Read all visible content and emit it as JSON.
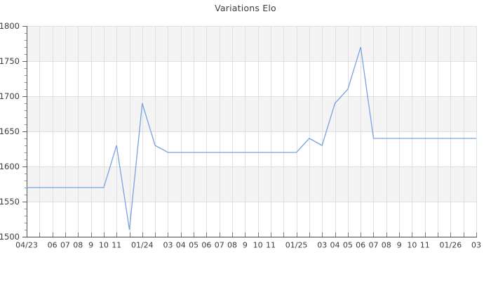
{
  "chart_data": {
    "type": "line",
    "title": "Variations Elo",
    "xlabel": "",
    "ylabel": "",
    "legend": "none",
    "grid": "on",
    "ylim": [
      1500,
      1800
    ],
    "y_major_step": 50,
    "y_minor_step": 10,
    "y_tick_labels": [
      "1800",
      "1750",
      "1700",
      "1650",
      "1600",
      "1550",
      "1500"
    ],
    "x_tick_labels": [
      "04/23",
      "",
      "06",
      "07",
      "08",
      "9",
      "10",
      "11",
      "",
      "01/24",
      "",
      "03",
      "04",
      "05",
      "06",
      "07",
      "08",
      "9",
      "10",
      "11",
      "",
      "01/25",
      "",
      "03",
      "04",
      "05",
      "06",
      "07",
      "08",
      "9",
      "10",
      "11",
      "",
      "01/26",
      "",
      "03"
    ],
    "x_months": [
      "04/2023",
      "05/2023",
      "06/2023",
      "07/2023",
      "08/2023",
      "09/2023",
      "10/2023",
      "11/2023",
      "12/2023",
      "01/2024",
      "02/2024",
      "03/2024",
      "04/2024",
      "05/2024",
      "06/2024",
      "07/2024",
      "08/2024",
      "09/2024",
      "10/2024",
      "11/2024",
      "12/2024",
      "01/2025",
      "02/2025",
      "03/2025",
      "04/2025",
      "05/2025",
      "06/2025",
      "07/2025",
      "08/2025",
      "09/2025",
      "10/2025",
      "11/2025",
      "12/2025",
      "01/2026",
      "02/2026",
      "03/2026"
    ],
    "values": [
      1570,
      1570,
      1570,
      1570,
      1570,
      1570,
      1570,
      1630,
      1510,
      1690,
      1630,
      1620,
      1620,
      1620,
      1620,
      1620,
      1620,
      1620,
      1620,
      1620,
      1620,
      1620,
      1640,
      1630,
      1690,
      1710,
      1770,
      1640,
      1640,
      1640,
      1640,
      1640,
      1640,
      1640,
      1640,
      1640
    ],
    "colors": {
      "line": "#79a3e1",
      "band": "#f4f4f4",
      "grid": "#e0e0e0",
      "axis": "#4d4d4d",
      "tick": "#777777",
      "label": "#3d3d3d",
      "title": "#3d3d3d",
      "background": "#ffffff"
    }
  }
}
